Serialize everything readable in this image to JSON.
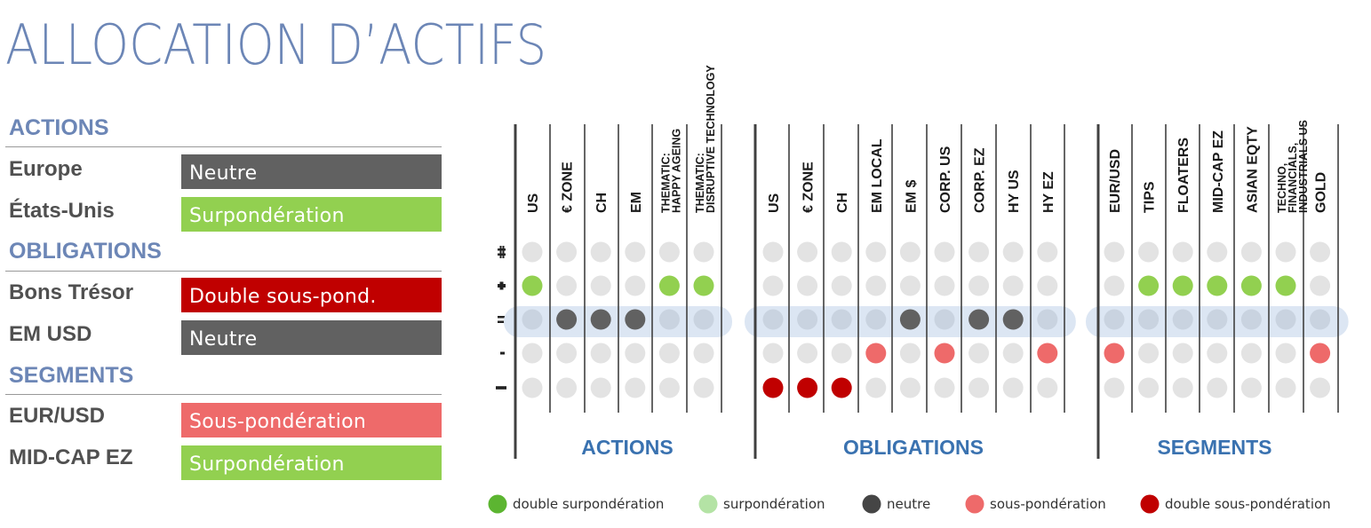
{
  "title": "ALLOCATION D’ACTIFS",
  "summary": {
    "sections": [
      {
        "name": "ACTIONS",
        "rows": [
          {
            "label": "Europe",
            "value": "Neutre",
            "rating": "neutre"
          },
          {
            "label": "États-Unis",
            "value": "Surpondération",
            "rating": "surponderation"
          }
        ]
      },
      {
        "name": "OBLIGATIONS",
        "rows": [
          {
            "label": "Bons Trésor",
            "value": "Double sous-pond.",
            "rating": "double-sous-ponderation"
          },
          {
            "label": "EM USD",
            "value": "Neutre",
            "rating": "neutre"
          }
        ]
      },
      {
        "name": "SEGMENTS",
        "rows": [
          {
            "label": "EUR/USD",
            "value": "Sous-pondération",
            "rating": "sous-ponderation"
          },
          {
            "label": "MID-CAP EZ",
            "value": "Surpondération",
            "rating": "surponderation"
          }
        ]
      }
    ]
  },
  "colors": {
    "title": "#6c86b6",
    "section_text": "#6c86b6",
    "group_title": "#3a72b0",
    "neutre": "#616161",
    "surponderation": "#92d050",
    "double-sous-ponderation": "#c00000",
    "sous-ponderation": "#ee6a6a",
    "legend_double_surponderation": "#5cb531",
    "legend_surponderation": "#b4e3a5",
    "legend_neutre": "#454545",
    "legend_sous_ponderation": "#ee6a6a",
    "legend_double_sous_ponderation": "#c00000",
    "empty_dot": "#e3e3e3",
    "neutral_band": "#dce6f3"
  },
  "chart_data": {
    "type": "table",
    "levels": [
      "++",
      "+",
      "=",
      "-",
      "--"
    ],
    "groups": [
      {
        "name": "ACTIONS",
        "columns": [
          {
            "label": "US",
            "position": "+"
          },
          {
            "label": "€ ZONE",
            "position": "="
          },
          {
            "label": "CH",
            "position": "="
          },
          {
            "label": "EM",
            "position": "="
          },
          {
            "label": "THEMATIC: HAPPY AGEING",
            "position": "+"
          },
          {
            "label": "THEMATIC: DISRUPTIVE TECHNOLOGY",
            "position": "+"
          }
        ]
      },
      {
        "name": "OBLIGATIONS",
        "columns": [
          {
            "label": "US",
            "position": "--"
          },
          {
            "label": "€ ZONE",
            "position": "--"
          },
          {
            "label": "CH",
            "position": "--"
          },
          {
            "label": "EM LOCAL",
            "position": "-"
          },
          {
            "label": "EM $",
            "position": "="
          },
          {
            "label": "CORP. US",
            "position": "-"
          },
          {
            "label": "CORP. EZ",
            "position": "="
          },
          {
            "label": "HY US",
            "position": "="
          },
          {
            "label": "HY EZ",
            "position": "-"
          }
        ]
      },
      {
        "name": "SEGMENTS",
        "columns": [
          {
            "label": "EUR/USD",
            "position": "-"
          },
          {
            "label": "TIPS",
            "position": "+"
          },
          {
            "label": "FLOATERS",
            "position": "+"
          },
          {
            "label": "MID-CAP EZ",
            "position": "+"
          },
          {
            "label": "ASIAN EQTY",
            "position": "+"
          },
          {
            "label": "TECHNO, FINANCIALS, INDUSTRIALS US",
            "position": "+"
          },
          {
            "label": "GOLD",
            "position": "-"
          }
        ]
      }
    ],
    "legend": [
      {
        "key": "legend_double_surponderation",
        "label": "double surpondération"
      },
      {
        "key": "legend_surponderation",
        "label": "surpondération"
      },
      {
        "key": "legend_neutre",
        "label": "neutre"
      },
      {
        "key": "legend_sous_ponderation",
        "label": "sous-pondération"
      },
      {
        "key": "legend_double_sous_ponderation",
        "label": "double sous-pondération"
      }
    ]
  }
}
